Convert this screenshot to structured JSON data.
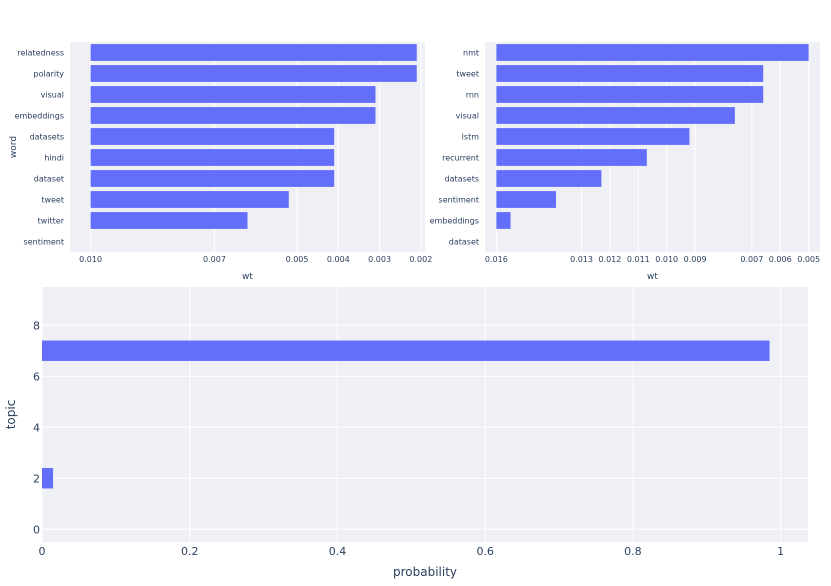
{
  "colors": {
    "bar": "#636efa",
    "plot_bg": "#eff0f6",
    "grid": "#ffffff"
  },
  "chart_data": [
    {
      "type": "bar",
      "orientation": "horizontal",
      "categories": [
        "relatedness",
        "polarity",
        "visual",
        "embeddings",
        "datasets",
        "hindi",
        "dataset",
        "tweet",
        "twitter",
        "sentiment"
      ],
      "values": [
        0.0021,
        0.0021,
        0.0031,
        0.0031,
        0.0041,
        0.0041,
        0.0041,
        0.0052,
        0.0062,
        null
      ],
      "ticks": [
        0.01,
        0.007,
        0.005,
        0.004,
        0.003,
        0.002
      ],
      "tick_labels": [
        "0.010",
        "0.007",
        "0.005",
        "0.004",
        "0.003",
        "0.002"
      ],
      "xlabel": "wt",
      "ylabel": "word",
      "x_reversed": true,
      "xlim_range": [
        0.0105,
        0.0019
      ]
    },
    {
      "type": "bar",
      "orientation": "horizontal",
      "categories": [
        "nmt",
        "tweet",
        "rnn",
        "visual",
        "lstm",
        "recurrent",
        "datasets",
        "sentiment",
        "embeddings",
        "dataset"
      ],
      "values": [
        0.005,
        0.0066,
        0.0066,
        0.0076,
        0.0092,
        0.0107,
        0.0123,
        0.0139,
        0.0155,
        null
      ],
      "ticks": [
        0.016,
        0.013,
        0.012,
        0.011,
        0.01,
        0.009,
        0.007,
        0.006,
        0.005
      ],
      "tick_labels": [
        "0.016",
        "0.013",
        "0.012",
        "0.011",
        "0.010",
        "0.009",
        "0.007",
        "0.006",
        "0.005"
      ],
      "xlabel": "wt",
      "ylabel": "",
      "x_reversed": true,
      "xlim_range": [
        0.0164,
        0.0046
      ]
    },
    {
      "type": "bar",
      "orientation": "horizontal",
      "categories": [
        2,
        7
      ],
      "values": [
        0.015,
        0.985
      ],
      "xticks": [
        0,
        0.2,
        0.4,
        0.6,
        0.8,
        1
      ],
      "xtick_labels": [
        "0",
        "0.2",
        "0.4",
        "0.6",
        "0.8",
        "1"
      ],
      "yticks": [
        0,
        2,
        4,
        6,
        8
      ],
      "ytick_labels": [
        "0",
        "2",
        "4",
        "6",
        "8"
      ],
      "xlabel": "probability",
      "ylabel": "topic",
      "xlim": [
        0,
        1.037
      ],
      "ylim": [
        -0.5,
        9.5
      ]
    }
  ]
}
